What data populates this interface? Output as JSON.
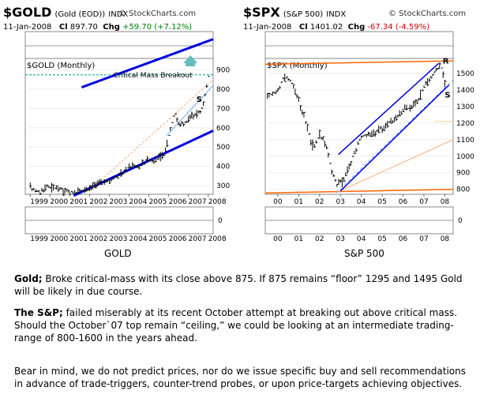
{
  "gold_panel": {
    "symbol": "$GOLD",
    "name": "(Gold (EOD))",
    "exchange": "INDX",
    "brand": "© StockCharts.com",
    "date": "11-Jan-2008",
    "close_label": "Cl",
    "close": "897.70",
    "chg_label": "Chg",
    "chg": "+59.70 (+7.12%)",
    "chart_label": "$GOLD (Monthly)",
    "annotation": "Critical Mass Breakout",
    "s_label": "S",
    "caption": "GOLD",
    "lower_zero": "0"
  },
  "spx_panel": {
    "symbol": "$SPX",
    "name": "(S&P 500)",
    "exchange": "INDX",
    "brand": "© StockCharts.com",
    "date": "11-Jan-2008",
    "close_label": "Cl",
    "close": "1401.02",
    "chg_label": "Chg",
    "chg": "-67.34 (-4.59%)",
    "chart_label": "$SPX (Monthly)",
    "r_label": "R",
    "s_label": "S",
    "caption": "S&P 500",
    "lower_zero": "0"
  },
  "chart_data": [
    {
      "type": "bar",
      "title": "$GOLD (Monthly)",
      "x_tick_labels": [
        "1999",
        "2000",
        "2001",
        "2002",
        "2003",
        "2004",
        "2005",
        "2006",
        "2007",
        "2008"
      ],
      "y_ticks": [
        300,
        400,
        500,
        600,
        700,
        800,
        900
      ],
      "ylim": [
        255,
        960
      ],
      "annotations": [
        "Critical Mass Breakout",
        "S"
      ],
      "level_line": 875,
      "series": [
        {
          "values": [
            [
              1999.0,
              288
            ],
            [
              1999.5,
              262
            ],
            [
              1999.8,
              299
            ],
            [
              2000.0,
              290
            ],
            [
              2000.5,
              282
            ],
            [
              2000.9,
              268
            ],
            [
              2001.2,
              265
            ],
            [
              2001.5,
              270
            ],
            [
              2001.9,
              278
            ],
            [
              2002.2,
              296
            ],
            [
              2002.5,
              314
            ],
            [
              2002.9,
              320
            ],
            [
              2003.2,
              340
            ],
            [
              2003.5,
              350
            ],
            [
              2003.9,
              390
            ],
            [
              2004.2,
              405
            ],
            [
              2004.5,
              395
            ],
            [
              2004.9,
              440
            ],
            [
              2005.2,
              430
            ],
            [
              2005.5,
              440
            ],
            [
              2005.8,
              470
            ],
            [
              2006.0,
              560
            ],
            [
              2006.3,
              680
            ],
            [
              2006.5,
              620
            ],
            [
              2006.8,
              620
            ],
            [
              2007.0,
              650
            ],
            [
              2007.3,
              670
            ],
            [
              2007.6,
              680
            ],
            [
              2007.8,
              750
            ],
            [
              2007.95,
              835
            ],
            [
              2008.05,
              897.7
            ]
          ]
        }
      ]
    },
    {
      "type": "bar",
      "title": "$SPX (Monthly)",
      "x_tick_labels": [
        "00",
        "01",
        "02",
        "03",
        "04",
        "05",
        "06",
        "07",
        "08"
      ],
      "y_ticks": [
        800,
        900,
        1000,
        1100,
        1200,
        1300,
        1400,
        1500
      ],
      "ylim": [
        770,
        1590
      ],
      "annotations": [
        "R",
        "S"
      ],
      "series": [
        {
          "values": [
            [
              1999.5,
              1360
            ],
            [
              2000.0,
              1400
            ],
            [
              2000.3,
              1480
            ],
            [
              2000.7,
              1440
            ],
            [
              2001.0,
              1330
            ],
            [
              2001.3,
              1220
            ],
            [
              2001.7,
              1050
            ],
            [
              2002.0,
              1130
            ],
            [
              2002.3,
              1070
            ],
            [
              2002.6,
              900
            ],
            [
              2002.8,
              830
            ],
            [
              2003.1,
              850
            ],
            [
              2003.3,
              900
            ],
            [
              2003.6,
              1000
            ],
            [
              2004.0,
              1120
            ],
            [
              2004.4,
              1130
            ],
            [
              2004.8,
              1150
            ],
            [
              2005.2,
              1190
            ],
            [
              2005.6,
              1220
            ],
            [
              2006.0,
              1280
            ],
            [
              2006.3,
              1290
            ],
            [
              2006.7,
              1330
            ],
            [
              2007.0,
              1420
            ],
            [
              2007.3,
              1470
            ],
            [
              2007.6,
              1520
            ],
            [
              2007.8,
              1550
            ],
            [
              2007.95,
              1470
            ],
            [
              2008.05,
              1401
            ]
          ]
        }
      ]
    }
  ],
  "text": {
    "p1_bold": "Gold;",
    "p1": " Broke critical-mass with its close above 875. If 875 remains “floor” 1295 and 1495 Gold will be likely in due course.",
    "p2_bold": "The S&P;",
    "p2": " failed miserably at its recent October attempt at breaking out above critical mass. Should the October`07 top remain “ceiling,” we could be looking at an intermediate trading-range of 800-1600 in the years ahead.",
    "p3": "Bear in mind, we do not predict prices, nor do we issue specific buy and sell recommendations in advance of trade-triggers, counter-trend probes, or upon price-targets achieving objectives."
  },
  "colors": {
    "channel_blue": "#0000dd",
    "light_blue": "#66aaff",
    "orange": "#ff6600",
    "light_orange": "#ffaa77",
    "teal": "#009999",
    "arrow": "#66bbbb",
    "green": "#008000",
    "red_r": "#dd4444"
  }
}
